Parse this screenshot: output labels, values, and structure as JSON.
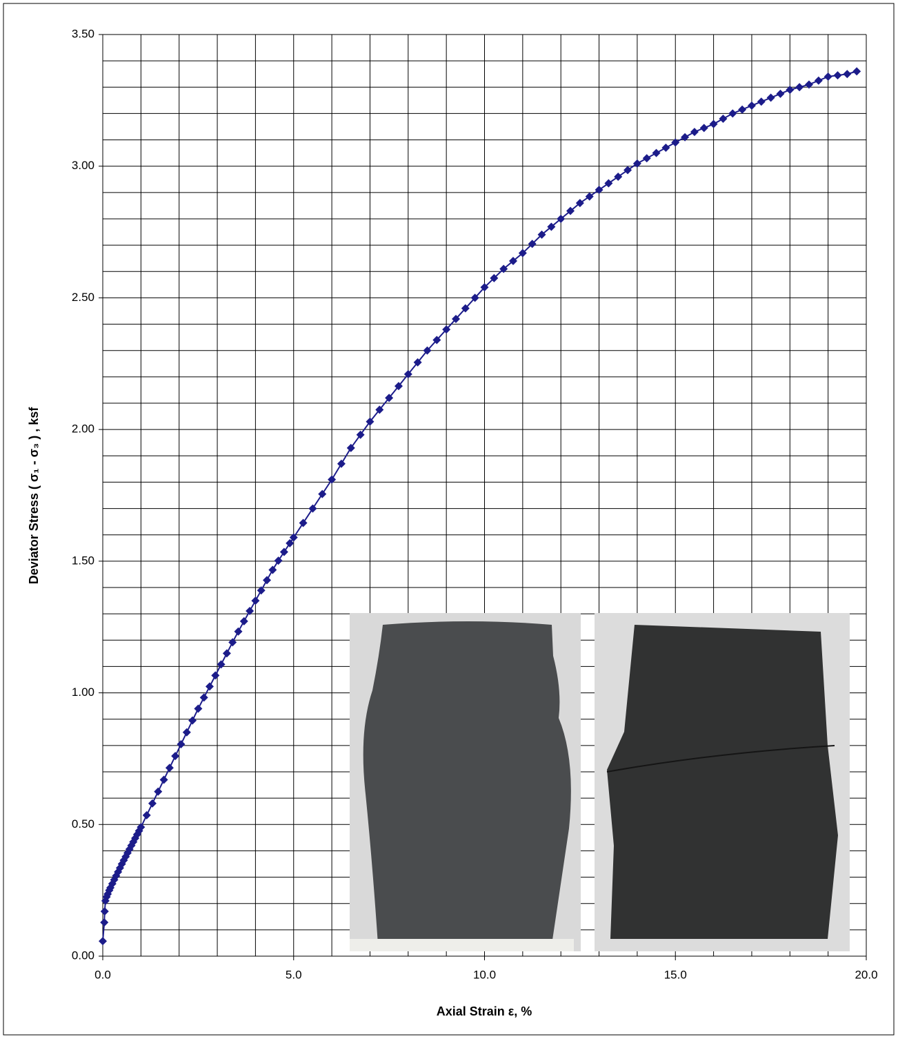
{
  "chart_data": {
    "type": "line",
    "marker": "diamond",
    "color": "#1c1c8a",
    "x_title": "Axial Strain ε, %",
    "y_title": "Deviator Stress ( σ₁ - σ₃ ) , ksf",
    "xlim": [
      0,
      20
    ],
    "ylim": [
      0,
      3.5
    ],
    "xticks": [
      {
        "value": 0,
        "label": "0.0"
      },
      {
        "value": 5,
        "label": "5.0"
      },
      {
        "value": 10,
        "label": "10.0"
      },
      {
        "value": 15,
        "label": "15.0"
      },
      {
        "value": 20,
        "label": "20.0"
      }
    ],
    "yticks": [
      {
        "value": 0,
        "label": "0.00"
      },
      {
        "value": 0.5,
        "label": "0.50"
      },
      {
        "value": 1,
        "label": "1.00"
      },
      {
        "value": 1.5,
        "label": "1.50"
      },
      {
        "value": 2,
        "label": "2.00"
      },
      {
        "value": 2.5,
        "label": "2.50"
      },
      {
        "value": 3,
        "label": "3.00"
      },
      {
        "value": 3.5,
        "label": "3.50"
      }
    ],
    "grid": true,
    "x_grid_step": 1,
    "y_grid_step": 0.1,
    "x": [
      0,
      0.04,
      0.05,
      0.07,
      0.1,
      0.13,
      0.17,
      0.2,
      0.25,
      0.3,
      0.35,
      0.4,
      0.45,
      0.5,
      0.55,
      0.6,
      0.65,
      0.7,
      0.75,
      0.8,
      0.85,
      0.9,
      0.95,
      1.0,
      1.15,
      1.3,
      1.45,
      1.6,
      1.75,
      1.9,
      2.05,
      2.2,
      2.35,
      2.5,
      2.65,
      2.8,
      2.95,
      3.1,
      3.25,
      3.4,
      3.55,
      3.7,
      3.85,
      4.0,
      4.15,
      4.3,
      4.45,
      4.6,
      4.75,
      4.9,
      5.0,
      5.25,
      5.5,
      5.75,
      6,
      6.25,
      6.5,
      6.75,
      7,
      7.25,
      7.5,
      7.75,
      8,
      8.25,
      8.5,
      8.75,
      9,
      9.25,
      9.5,
      9.75,
      10,
      10.25,
      10.5,
      10.75,
      11,
      11.25,
      11.5,
      11.75,
      12,
      12.25,
      12.5,
      12.75,
      13,
      13.25,
      13.5,
      13.75,
      14,
      14.25,
      14.5,
      14.75,
      15,
      15.25,
      15.5,
      15.75,
      16,
      16.25,
      16.5,
      16.75,
      17,
      17.25,
      17.5,
      17.75,
      18,
      18.25,
      18.5,
      18.75,
      19,
      19.25,
      19.5,
      19.75
    ],
    "values": [
      0.057,
      0.128,
      0.17,
      0.21,
      0.225,
      0.236,
      0.25,
      0.26,
      0.275,
      0.29,
      0.305,
      0.32,
      0.335,
      0.35,
      0.364,
      0.378,
      0.392,
      0.406,
      0.42,
      0.434,
      0.448,
      0.462,
      0.476,
      0.49,
      0.535,
      0.58,
      0.625,
      0.67,
      0.715,
      0.76,
      0.805,
      0.85,
      0.895,
      0.94,
      0.982,
      1.024,
      1.066,
      1.108,
      1.15,
      1.192,
      1.233,
      1.272,
      1.311,
      1.35,
      1.389,
      1.428,
      1.467,
      1.502,
      1.535,
      1.568,
      1.59,
      1.645,
      1.7,
      1.755,
      1.81,
      1.87,
      1.93,
      1.98,
      2.03,
      2.075,
      2.12,
      2.165,
      2.21,
      2.255,
      2.3,
      2.34,
      2.38,
      2.42,
      2.46,
      2.5,
      2.54,
      2.575,
      2.61,
      2.64,
      2.67,
      2.705,
      2.74,
      2.77,
      2.8,
      2.83,
      2.86,
      2.885,
      2.91,
      2.935,
      2.96,
      2.985,
      3.01,
      3.03,
      3.05,
      3.07,
      3.09,
      3.11,
      3.13,
      3.145,
      3.16,
      3.18,
      3.2,
      3.215,
      3.23,
      3.245,
      3.26,
      3.275,
      3.29,
      3.3,
      3.31,
      3.325,
      3.34,
      3.345,
      3.35,
      3.36
    ]
  }
}
